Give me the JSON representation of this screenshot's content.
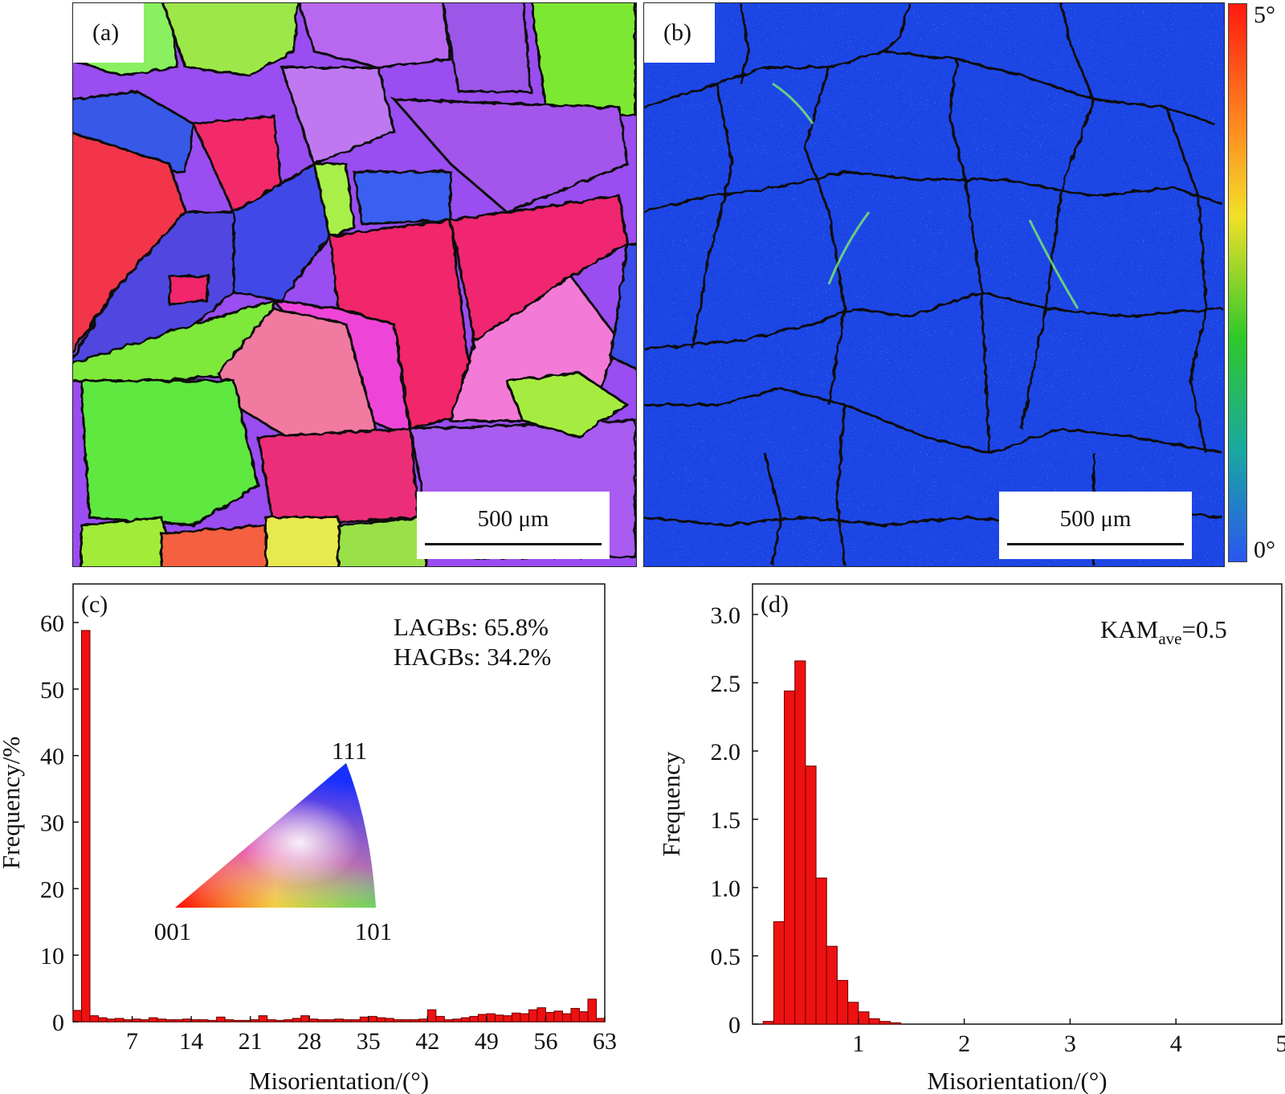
{
  "panels": {
    "a": {
      "letter": "(a)",
      "scale_label": "500 μm"
    },
    "b": {
      "letter": "(b)",
      "scale_label": "500 μm",
      "colorbar_max": "5°",
      "colorbar_min": "0°"
    }
  },
  "colors": {
    "bar_fill": "#ee1111",
    "bar_stroke": "#6a0000",
    "kam_background": "#1c45e6",
    "grain_boundary": "#111111"
  },
  "chart_data": [
    {
      "type": "bar",
      "panel_label": "(c)",
      "xlabel": "Misorientation/(°)",
      "ylabel": "Frequency/%",
      "xlim": [
        0,
        63
      ],
      "ylim": [
        0,
        60
      ],
      "xticks": [
        7,
        14,
        21,
        28,
        35,
        42,
        49,
        56,
        63
      ],
      "yticks": [
        0,
        10,
        20,
        30,
        40,
        50,
        60
      ],
      "bin_width": 1,
      "x": [
        0.5,
        1.5,
        2.5,
        3.5,
        4.5,
        5.5,
        6.5,
        7.5,
        8.5,
        9.5,
        10.5,
        11.5,
        12.5,
        13.5,
        14.5,
        15.5,
        16.5,
        17.5,
        18.5,
        19.5,
        20.5,
        21.5,
        22.5,
        23.5,
        24.5,
        25.5,
        26.5,
        27.5,
        28.5,
        29.5,
        30.5,
        31.5,
        32.5,
        33.5,
        34.5,
        35.5,
        36.5,
        37.5,
        38.5,
        39.5,
        40.5,
        41.5,
        42.5,
        43.5,
        44.5,
        45.5,
        46.5,
        47.5,
        48.5,
        49.5,
        50.5,
        51.5,
        52.5,
        53.5,
        54.5,
        55.5,
        56.5,
        57.5,
        58.5,
        59.5,
        60.5,
        61.5,
        62.5
      ],
      "values": [
        1.7,
        58.8,
        0.9,
        0.6,
        0.4,
        0.5,
        0.3,
        0.4,
        0.3,
        0.6,
        0.4,
        0.3,
        0.3,
        0.4,
        0.3,
        0.3,
        0.2,
        0.7,
        0.3,
        0.2,
        0.2,
        0.3,
        0.9,
        0.3,
        0.2,
        0.3,
        0.5,
        0.9,
        0.4,
        0.3,
        0.3,
        0.4,
        0.3,
        0.3,
        0.7,
        0.8,
        0.6,
        0.5,
        0.3,
        0.3,
        0.3,
        0.4,
        1.8,
        0.8,
        0.3,
        0.4,
        0.6,
        0.8,
        1.1,
        1.2,
        1.0,
        0.9,
        1.3,
        1.2,
        1.8,
        2.1,
        1.4,
        1.6,
        1.2,
        2.0,
        1.5,
        3.4,
        0.5
      ],
      "annotations": [
        "LAGBs: 65.8%",
        "HAGBs: 34.2%"
      ],
      "ipf_labels": [
        "111",
        "001",
        "101"
      ]
    },
    {
      "type": "bar",
      "panel_label": "(d)",
      "xlabel": "Misorientation/(°)",
      "ylabel": "Frequency",
      "xlim": [
        0,
        5
      ],
      "ylim": [
        0,
        3.0
      ],
      "xticks": [
        1,
        2,
        3,
        4,
        5
      ],
      "yticks": [
        0,
        0.5,
        1.0,
        1.5,
        2.0,
        2.5,
        3.0
      ],
      "ytick_labels": [
        "0",
        "0.5",
        "1.0",
        "1.5",
        "2.0",
        "2.5",
        "3.0"
      ],
      "bin_width": 0.1,
      "x": [
        0.15,
        0.25,
        0.35,
        0.45,
        0.55,
        0.65,
        0.75,
        0.85,
        0.95,
        1.05,
        1.15,
        1.25,
        1.35
      ],
      "values": [
        0.02,
        0.75,
        2.44,
        2.66,
        1.89,
        1.07,
        0.57,
        0.32,
        0.16,
        0.09,
        0.04,
        0.02,
        0.01
      ],
      "annotation_main": "KAM",
      "annotation_sub": "ave",
      "annotation_tail": "=0.5"
    }
  ]
}
